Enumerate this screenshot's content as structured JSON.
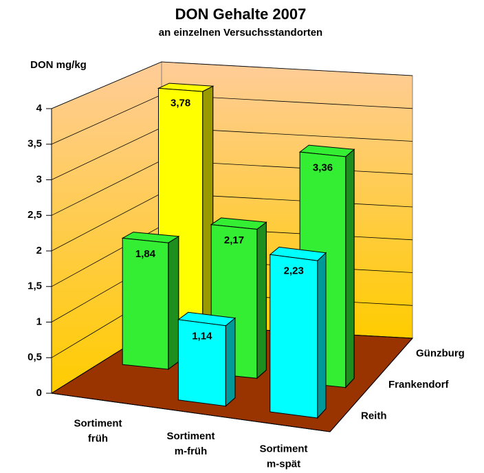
{
  "chart_data": {
    "type": "bar3d",
    "title": "DON Gehalte 2007",
    "subtitle": "an einzelnen Versuchsstandorten",
    "y_label": "DON mg/kg",
    "categories": [
      [
        "Sortiment",
        "früh"
      ],
      [
        "Sortiment",
        "m-früh"
      ],
      [
        "Sortiment",
        "m-spät"
      ]
    ],
    "series": [
      {
        "name": "Reith",
        "color": "#00ffff",
        "values": [
          null,
          1.14,
          2.23
        ],
        "value_labels": [
          null,
          "1,14",
          "2,23"
        ]
      },
      {
        "name": "Frankendorf",
        "color": "#33ee33",
        "values": [
          1.84,
          2.17,
          3.36
        ],
        "value_labels": [
          "1,84",
          "2,17",
          "3,36"
        ]
      },
      {
        "name": "Günzburg",
        "color": "#ffff00",
        "values": [
          3.78,
          null,
          null
        ],
        "value_labels": [
          "3,78",
          null,
          null
        ]
      }
    ],
    "ylim": [
      0,
      4
    ],
    "yticks": [
      0,
      {
        "value": 0.5,
        "label": "0,5"
      },
      1,
      {
        "value": 1.5,
        "label": "1,5"
      },
      2,
      {
        "value": 2.5,
        "label": "2,5"
      },
      3,
      {
        "value": 3.5,
        "label": "3,5"
      },
      4
    ],
    "grid": true,
    "wall_color": [
      "#ffcc99",
      "#ffcc00"
    ],
    "floor_color": "#993300"
  }
}
